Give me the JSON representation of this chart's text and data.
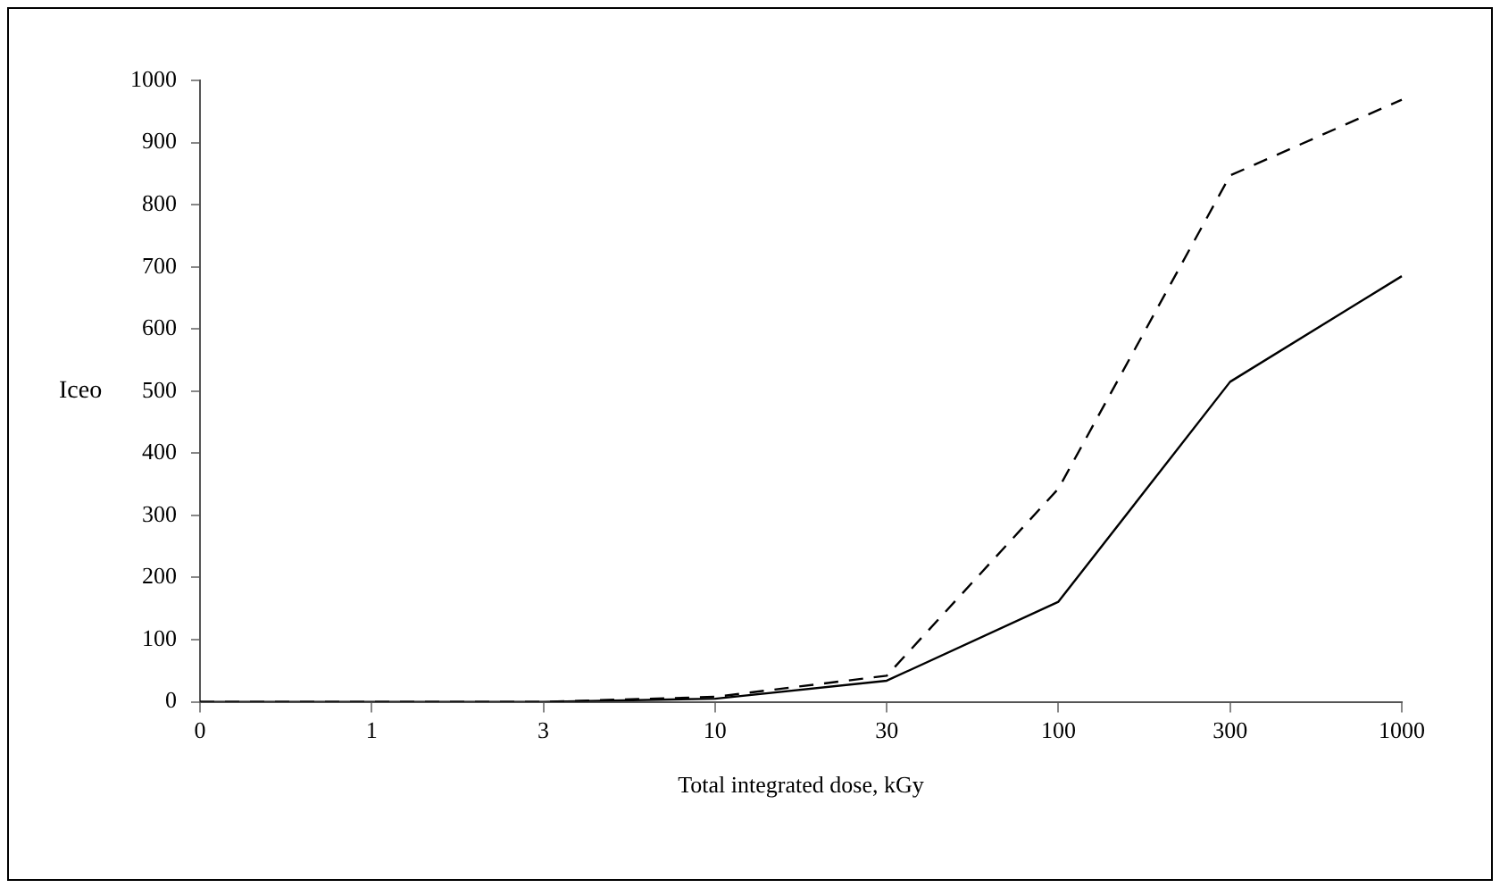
{
  "chart_data": {
    "type": "line",
    "xlabel": "Total integrated dose, kGy",
    "ylabel": "Iceo",
    "categories": [
      "0",
      "1",
      "3",
      "10",
      "30",
      "100",
      "300",
      "1000"
    ],
    "series": [
      {
        "color": "#000000",
        "line_style": "dashed",
        "values": [
          0,
          0,
          0,
          8,
          42,
          343,
          847,
          969
        ]
      },
      {
        "color": "#000000",
        "line_style": "solid",
        "values": [
          0,
          0,
          0,
          5,
          34,
          161,
          515,
          685
        ]
      }
    ],
    "ylim": [
      0,
      1000
    ],
    "yticks": [
      0,
      100,
      200,
      300,
      400,
      500,
      600,
      700,
      800,
      900,
      1000
    ],
    "marker": "none"
  }
}
